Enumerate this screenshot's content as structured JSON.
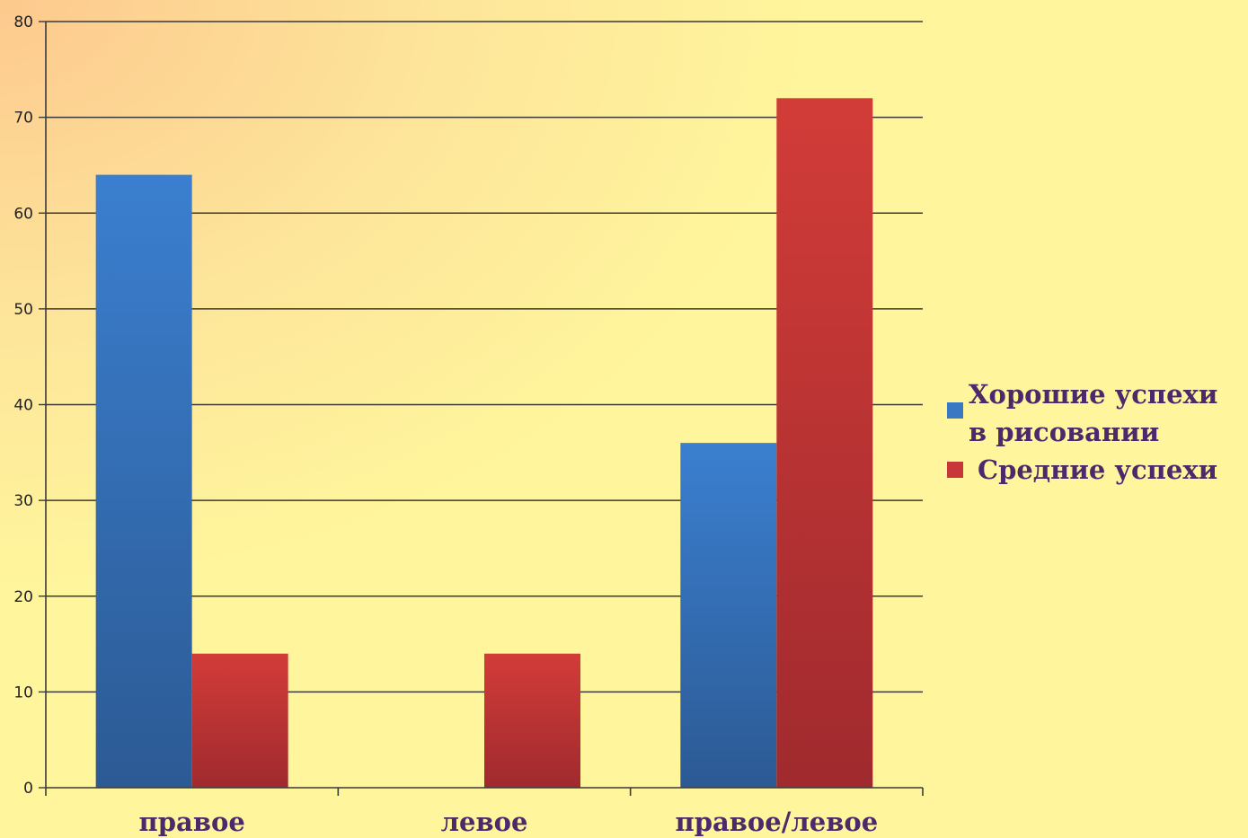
{
  "chart_data": {
    "type": "bar",
    "categories": [
      "правое",
      "левое",
      "правое/левое"
    ],
    "series": [
      {
        "name": "Хорошие успехи в рисовании",
        "values": [
          64,
          0,
          36
        ],
        "color": "#3a78c4"
      },
      {
        "name": "Средние успехи",
        "values": [
          14,
          14,
          72
        ],
        "color": "#c8363a"
      }
    ],
    "ylim": [
      0,
      80
    ],
    "yticks": [
      0,
      10,
      20,
      30,
      40,
      50,
      60,
      70,
      80
    ],
    "grid": true,
    "legend": "right"
  }
}
